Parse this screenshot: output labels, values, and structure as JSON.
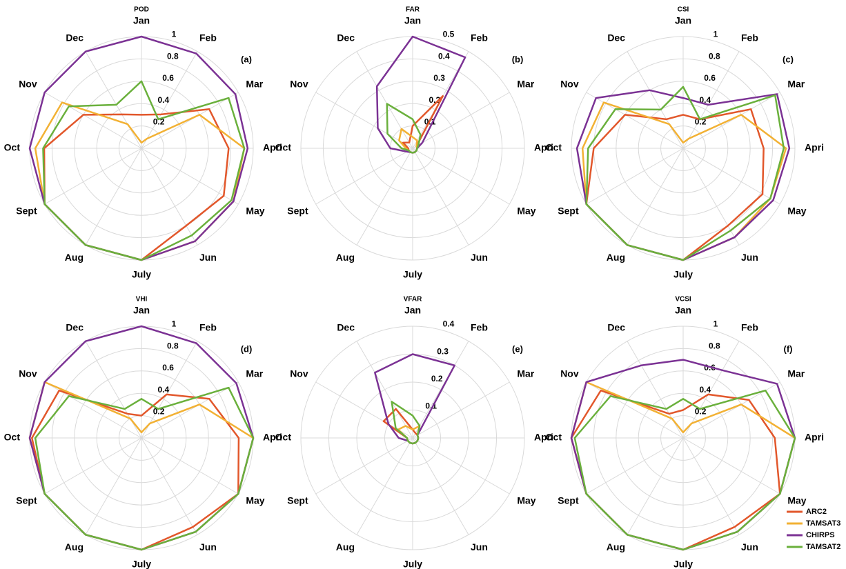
{
  "chart_data": [
    {
      "type": "radar",
      "title": "POD",
      "panel_label": "(a)",
      "categories": [
        "Jan",
        "Feb",
        "Mar",
        "Apri",
        "May",
        "Jun",
        "July",
        "Aug",
        "Sept",
        "Oct",
        "Nov",
        "Dec"
      ],
      "rlim": [
        0,
        1
      ],
      "rticks": [
        0.2,
        0.4,
        0.6,
        0.8,
        1
      ],
      "grid": true,
      "series": [
        {
          "name": "ARC2",
          "color": "#e2572b",
          "values": [
            0.3,
            0.35,
            0.7,
            0.78,
            0.85,
            0.8,
            1,
            1,
            1,
            0.87,
            0.6,
            0.35
          ]
        },
        {
          "name": "TAMSAT3",
          "color": "#f2b134",
          "values": [
            0.05,
            0.1,
            0.6,
            0.92,
            0.95,
            0.96,
            1,
            1,
            1,
            0.95,
            0.82,
            0.25
          ]
        },
        {
          "name": "CHIRPS",
          "color": "#7b3294",
          "values": [
            1,
            0.98,
            0.97,
            0.95,
            0.95,
            0.96,
            1,
            1,
            1,
            1,
            1,
            1
          ]
        },
        {
          "name": "TAMSAT2",
          "color": "#6ab03c",
          "values": [
            0.6,
            0.3,
            0.9,
            0.92,
            0.93,
            0.9,
            1,
            1,
            1,
            0.88,
            0.75,
            0.45
          ]
        }
      ]
    },
    {
      "type": "radar",
      "title": "FAR",
      "panel_label": "(b)",
      "categories": [
        "Jan",
        "Feb",
        "Mar",
        "Apri",
        "May",
        "Jun",
        "July",
        "Aug",
        "Sept",
        "Oct",
        "Nov",
        "Dec"
      ],
      "rlim": [
        0,
        0.5
      ],
      "rticks": [
        0.1,
        0.2,
        0.3,
        0.4,
        0.5
      ],
      "grid": true,
      "series": [
        {
          "name": "ARC2",
          "color": "#e2572b",
          "values": [
            0.1,
            0.27,
            0.02,
            0.02,
            0.02,
            0.02,
            0.02,
            0.02,
            0.02,
            0.02,
            0.05,
            0.03
          ]
        },
        {
          "name": "TAMSAT3",
          "color": "#f2b134",
          "values": [
            0.05,
            0.04,
            0.02,
            0.02,
            0.02,
            0.02,
            0.02,
            0.02,
            0.02,
            0.03,
            0.07,
            0.1
          ]
        },
        {
          "name": "CHIRPS",
          "color": "#7b3294",
          "values": [
            0.5,
            0.47,
            0.05,
            0.02,
            0.02,
            0.02,
            0.02,
            0.02,
            0.03,
            0.1,
            0.18,
            0.32
          ]
        },
        {
          "name": "TAMSAT2",
          "color": "#6ab03c",
          "values": [
            0.13,
            0.07,
            0.03,
            0.02,
            0.02,
            0.02,
            0.02,
            0.02,
            0.02,
            0.05,
            0.13,
            0.23
          ]
        }
      ]
    },
    {
      "type": "radar",
      "title": "CSI",
      "panel_label": "(c)",
      "categories": [
        "Jan",
        "Feb",
        "Mar",
        "Apri",
        "May",
        "Jun",
        "July",
        "Aug",
        "Sept",
        "Oct",
        "Nov",
        "Dec"
      ],
      "rlim": [
        0,
        1
      ],
      "rticks": [
        0.2,
        0.4,
        0.6,
        0.8,
        1
      ],
      "grid": true,
      "series": [
        {
          "name": "ARC2",
          "color": "#e2572b",
          "values": [
            0.3,
            0.3,
            0.7,
            0.72,
            0.82,
            0.8,
            1,
            1,
            1,
            0.8,
            0.6,
            0.3
          ]
        },
        {
          "name": "TAMSAT3",
          "color": "#f2b134",
          "values": [
            0.05,
            0.1,
            0.6,
            0.92,
            0.9,
            0.92,
            1,
            1,
            1,
            0.9,
            0.82,
            0.25
          ]
        },
        {
          "name": "CHIRPS",
          "color": "#7b3294",
          "values": [
            0.45,
            0.45,
            0.97,
            0.95,
            0.93,
            0.92,
            1,
            1,
            1,
            0.95,
            0.9,
            0.6
          ]
        },
        {
          "name": "TAMSAT2",
          "color": "#6ab03c",
          "values": [
            0.55,
            0.3,
            0.95,
            0.9,
            0.9,
            0.85,
            1,
            1,
            1,
            0.85,
            0.7,
            0.4
          ]
        }
      ]
    },
    {
      "type": "radar",
      "title": "VHI",
      "panel_label": "(d)",
      "categories": [
        "Jan",
        "Feb",
        "Mar",
        "Apri",
        "May",
        "Jun",
        "July",
        "Aug",
        "Sept",
        "Oct",
        "Nov",
        "Dec"
      ],
      "rlim": [
        0,
        1
      ],
      "rticks": [
        0.2,
        0.4,
        0.6,
        0.8,
        1
      ],
      "grid": true,
      "series": [
        {
          "name": "ARC2",
          "color": "#e2572b",
          "values": [
            0.2,
            0.45,
            0.7,
            0.87,
            1,
            0.92,
            1,
            1,
            1,
            0.98,
            0.85,
            0.25
          ]
        },
        {
          "name": "TAMSAT3",
          "color": "#f2b134",
          "values": [
            0.05,
            0.15,
            0.6,
            1,
            1,
            0.97,
            1,
            1,
            1,
            1,
            1,
            0.2
          ]
        },
        {
          "name": "CHIRPS",
          "color": "#7b3294",
          "values": [
            1,
            0.98,
            0.98,
            1,
            1,
            0.97,
            1,
            1,
            1,
            1,
            1,
            1
          ]
        },
        {
          "name": "TAMSAT2",
          "color": "#6ab03c",
          "values": [
            0.35,
            0.3,
            0.9,
            1,
            1,
            0.97,
            1,
            1,
            1,
            0.95,
            0.75,
            0.3
          ]
        }
      ]
    },
    {
      "type": "radar",
      "title": "VFAR",
      "panel_label": "(e)",
      "categories": [
        "Jan",
        "Feb",
        "Mar",
        "Apri",
        "May",
        "Jun",
        "July",
        "Aug",
        "Sept",
        "Oct",
        "Nov",
        "Dec"
      ],
      "rlim": [
        0,
        0.4
      ],
      "rticks": [
        0.1,
        0.2,
        0.3,
        0.4
      ],
      "grid": true,
      "series": [
        {
          "name": "ARC2",
          "color": "#e2572b",
          "values": [
            0.03,
            0.02,
            0.02,
            0.02,
            0.02,
            0.02,
            0.02,
            0.02,
            0.02,
            0.02,
            0.12,
            0.12
          ]
        },
        {
          "name": "TAMSAT3",
          "color": "#f2b134",
          "values": [
            0.03,
            0.05,
            0.02,
            0.02,
            0.02,
            0.02,
            0.02,
            0.02,
            0.02,
            0.02,
            0.06,
            0.05
          ]
        },
        {
          "name": "CHIRPS",
          "color": "#7b3294",
          "values": [
            0.3,
            0.3,
            0.02,
            0.02,
            0.02,
            0.02,
            0.02,
            0.02,
            0.02,
            0.05,
            0.1,
            0.27
          ]
        },
        {
          "name": "TAMSAT2",
          "color": "#6ab03c",
          "values": [
            0.08,
            0.05,
            0.02,
            0.02,
            0.02,
            0.02,
            0.02,
            0.02,
            0.02,
            0.02,
            0.07,
            0.15
          ]
        }
      ]
    },
    {
      "type": "radar",
      "title": "VCSI",
      "panel_label": "(f)",
      "categories": [
        "Jan",
        "Feb",
        "Mar",
        "Apri",
        "May",
        "Jun",
        "July",
        "Aug",
        "Sept",
        "Oct",
        "Nov",
        "Dec"
      ],
      "rlim": [
        0,
        1
      ],
      "rticks": [
        0.2,
        0.4,
        0.6,
        0.8,
        1
      ],
      "grid": true,
      "series": [
        {
          "name": "ARC2",
          "color": "#e2572b",
          "values": [
            0.25,
            0.45,
            0.68,
            0.82,
            1,
            0.92,
            1,
            1,
            1,
            1,
            0.85,
            0.25
          ]
        },
        {
          "name": "TAMSAT3",
          "color": "#f2b134",
          "values": [
            0.05,
            0.15,
            0.6,
            1,
            1,
            0.97,
            1,
            1,
            1,
            1,
            1,
            0.2
          ]
        },
        {
          "name": "CHIRPS",
          "color": "#7b3294",
          "values": [
            0.7,
            0.7,
            0.97,
            1,
            1,
            0.97,
            1,
            1,
            1,
            1,
            1,
            0.75
          ]
        },
        {
          "name": "TAMSAT2",
          "color": "#6ab03c",
          "values": [
            0.35,
            0.3,
            0.85,
            1,
            1,
            0.97,
            1,
            1,
            1,
            0.97,
            0.75,
            0.3
          ]
        }
      ]
    }
  ]
}
